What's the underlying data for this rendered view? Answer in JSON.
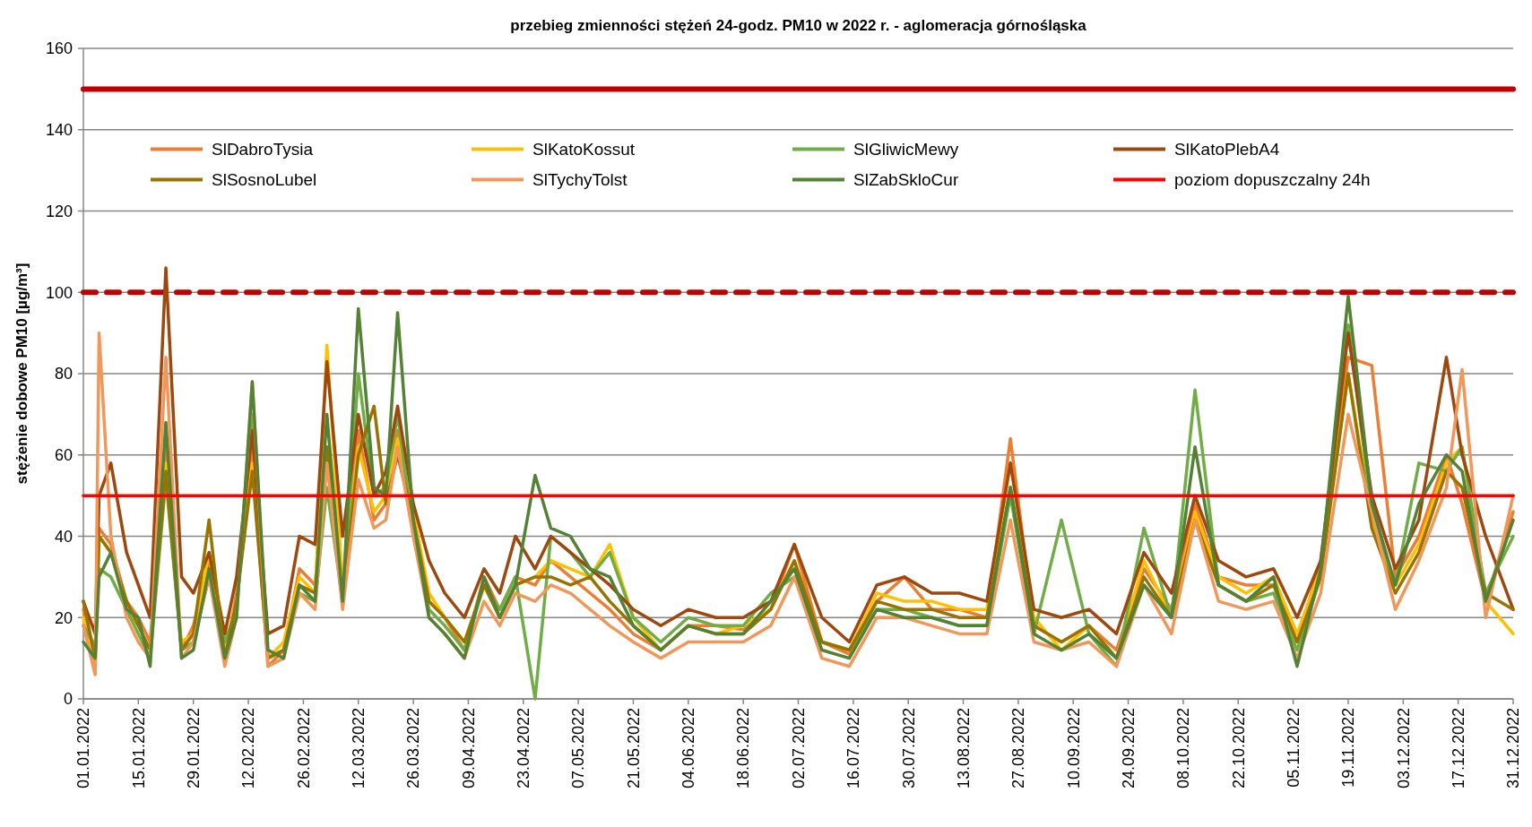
{
  "chart_data": {
    "type": "line",
    "title": "przebieg zmienności stężeń 24-godz. PM10 w 2022 r. - aglomeracja górnośląska",
    "ylabel": "stężenie dobowe PM10 [µg/m³]",
    "x": [
      "2022-01-01",
      "2022-01-04",
      "2022-01-05",
      "2022-01-08",
      "2022-01-12",
      "2022-01-15",
      "2022-01-18",
      "2022-01-22",
      "2022-01-26",
      "2022-01-29",
      "2022-02-02",
      "2022-02-06",
      "2022-02-09",
      "2022-02-13",
      "2022-02-17",
      "2022-02-21",
      "2022-02-25",
      "2022-03-01",
      "2022-03-04",
      "2022-03-08",
      "2022-03-12",
      "2022-03-16",
      "2022-03-19",
      "2022-03-22",
      "2022-03-26",
      "2022-03-30",
      "2022-04-03",
      "2022-04-08",
      "2022-04-13",
      "2022-04-17",
      "2022-04-21",
      "2022-04-26",
      "2022-04-30",
      "2022-05-05",
      "2022-05-10",
      "2022-05-15",
      "2022-05-21",
      "2022-05-28",
      "2022-06-04",
      "2022-06-11",
      "2022-06-18",
      "2022-06-25",
      "2022-07-01",
      "2022-07-08",
      "2022-07-15",
      "2022-07-22",
      "2022-07-29",
      "2022-08-05",
      "2022-08-12",
      "2022-08-19",
      "2022-08-25",
      "2022-08-31",
      "2022-09-07",
      "2022-09-14",
      "2022-09-21",
      "2022-09-28",
      "2022-10-05",
      "2022-10-11",
      "2022-10-17",
      "2022-10-24",
      "2022-10-31",
      "2022-11-06",
      "2022-11-12",
      "2022-11-19",
      "2022-11-25",
      "2022-12-01",
      "2022-12-07",
      "2022-12-14",
      "2022-12-18",
      "2022-12-24",
      "2022-12-31"
    ],
    "series": [
      {
        "name": "SlDabroTysia",
        "color": "#ed7d31",
        "values": [
          22,
          8,
          42,
          38,
          24,
          20,
          14,
          62,
          12,
          18,
          34,
          10,
          26,
          62,
          8,
          12,
          32,
          28,
          60,
          26,
          66,
          44,
          48,
          66,
          44,
          24,
          20,
          12,
          30,
          22,
          30,
          28,
          34,
          30,
          26,
          22,
          16,
          12,
          18,
          18,
          17,
          22,
          38,
          14,
          11,
          24,
          30,
          22,
          22,
          20,
          64,
          18,
          14,
          18,
          12,
          32,
          22,
          48,
          30,
          28,
          28,
          14,
          34,
          84,
          82,
          30,
          40,
          60,
          48,
          24,
          46
        ]
      },
      {
        "name": "SlKatoKossut",
        "color": "#ffc000",
        "values": [
          20,
          6,
          40,
          36,
          22,
          18,
          12,
          58,
          14,
          16,
          36,
          12,
          24,
          58,
          10,
          14,
          30,
          26,
          87,
          28,
          62,
          46,
          50,
          64,
          46,
          26,
          20,
          14,
          28,
          20,
          28,
          30,
          34,
          32,
          30,
          38,
          20,
          12,
          18,
          16,
          18,
          22,
          34,
          14,
          12,
          26,
          24,
          24,
          22,
          22,
          58,
          20,
          12,
          18,
          10,
          34,
          20,
          46,
          30,
          26,
          30,
          16,
          32,
          80,
          44,
          28,
          38,
          58,
          62,
          24,
          16
        ]
      },
      {
        "name": "SlGliwicMewy",
        "color": "#70ad47",
        "values": [
          18,
          13,
          32,
          30,
          22,
          16,
          10,
          54,
          12,
          14,
          30,
          14,
          22,
          70,
          10,
          12,
          26,
          24,
          52,
          24,
          80,
          50,
          52,
          70,
          40,
          22,
          18,
          12,
          28,
          22,
          30,
          0,
          40,
          36,
          30,
          36,
          20,
          14,
          20,
          18,
          18,
          26,
          30,
          14,
          12,
          22,
          22,
          20,
          18,
          18,
          50,
          16,
          44,
          16,
          8,
          42,
          20,
          76,
          28,
          24,
          26,
          12,
          30,
          92,
          46,
          28,
          58,
          56,
          62,
          26,
          40
        ]
      },
      {
        "name": "SlKatoPlebA4",
        "color": "#9e480e",
        "values": [
          24,
          16,
          50,
          58,
          36,
          28,
          20,
          106,
          30,
          26,
          36,
          16,
          30,
          66,
          16,
          18,
          40,
          38,
          83,
          40,
          70,
          50,
          56,
          72,
          48,
          34,
          26,
          20,
          32,
          26,
          40,
          32,
          40,
          36,
          32,
          28,
          22,
          18,
          22,
          20,
          20,
          24,
          38,
          20,
          14,
          28,
          30,
          26,
          26,
          24,
          58,
          22,
          20,
          22,
          16,
          36,
          26,
          50,
          34,
          30,
          32,
          20,
          34,
          90,
          50,
          32,
          44,
          84,
          60,
          40,
          22
        ]
      },
      {
        "name": "SlSosnoLubel",
        "color": "#997300",
        "values": [
          24,
          10,
          40,
          36,
          24,
          18,
          12,
          56,
          12,
          16,
          44,
          10,
          24,
          56,
          10,
          12,
          28,
          26,
          62,
          24,
          60,
          72,
          48,
          60,
          44,
          24,
          20,
          14,
          28,
          20,
          28,
          30,
          30,
          28,
          30,
          24,
          18,
          12,
          18,
          16,
          16,
          22,
          34,
          14,
          12,
          24,
          22,
          22,
          20,
          20,
          52,
          18,
          14,
          18,
          10,
          30,
          20,
          44,
          28,
          24,
          28,
          14,
          30,
          80,
          42,
          26,
          36,
          56,
          52,
          26,
          22
        ]
      },
      {
        "name": "SlTychyTolst",
        "color": "#f1975a",
        "values": [
          18,
          6,
          90,
          40,
          20,
          14,
          10,
          84,
          10,
          14,
          30,
          8,
          20,
          78,
          8,
          10,
          26,
          22,
          58,
          22,
          54,
          42,
          44,
          62,
          40,
          20,
          16,
          10,
          24,
          18,
          26,
          24,
          28,
          26,
          22,
          18,
          14,
          10,
          14,
          14,
          14,
          18,
          30,
          10,
          8,
          20,
          20,
          18,
          16,
          16,
          44,
          14,
          12,
          14,
          8,
          28,
          16,
          44,
          24,
          22,
          24,
          10,
          26,
          70,
          46,
          22,
          34,
          52,
          81,
          20,
          50
        ]
      },
      {
        "name": "SlZabSkloCur",
        "color": "#548235",
        "values": [
          14,
          10,
          30,
          36,
          22,
          20,
          8,
          68,
          10,
          12,
          32,
          10,
          20,
          78,
          12,
          10,
          28,
          24,
          70,
          24,
          96,
          52,
          50,
          95,
          44,
          20,
          16,
          10,
          30,
          20,
          28,
          55,
          42,
          40,
          32,
          30,
          18,
          12,
          18,
          16,
          16,
          24,
          32,
          12,
          10,
          22,
          20,
          20,
          18,
          18,
          52,
          16,
          12,
          16,
          10,
          28,
          20,
          62,
          28,
          24,
          30,
          8,
          32,
          99,
          48,
          28,
          48,
          60,
          56,
          24,
          44
        ]
      },
      {
        "name": "poziom dopuszczalny 24h",
        "color": "#ff0000",
        "x": [
          "2022-01-01",
          "2022-12-31"
        ],
        "values": [
          50,
          50
        ]
      }
    ],
    "xlim": [
      "2022-01-01",
      "2022-12-31"
    ],
    "xticks": [
      {
        "value": "2022-01-01",
        "label": "01.01.2022"
      },
      {
        "value": "2022-01-15",
        "label": "15.01.2022"
      },
      {
        "value": "2022-01-29",
        "label": "29.01.2022"
      },
      {
        "value": "2022-02-12",
        "label": "12.02.2022"
      },
      {
        "value": "2022-02-26",
        "label": "26.02.2022"
      },
      {
        "value": "2022-03-12",
        "label": "12.03.2022"
      },
      {
        "value": "2022-03-26",
        "label": "26.03.2022"
      },
      {
        "value": "2022-04-09",
        "label": "09.04.2022"
      },
      {
        "value": "2022-04-23",
        "label": "23.04.2022"
      },
      {
        "value": "2022-05-07",
        "label": "07.05.2022"
      },
      {
        "value": "2022-05-21",
        "label": "21.05.2022"
      },
      {
        "value": "2022-06-04",
        "label": "04.06.2022"
      },
      {
        "value": "2022-06-18",
        "label": "18.06.2022"
      },
      {
        "value": "2022-07-02",
        "label": "02.07.2022"
      },
      {
        "value": "2022-07-16",
        "label": "16.07.2022"
      },
      {
        "value": "2022-07-30",
        "label": "30.07.2022"
      },
      {
        "value": "2022-08-13",
        "label": "13.08.2022"
      },
      {
        "value": "2022-08-27",
        "label": "27.08.2022"
      },
      {
        "value": "2022-09-10",
        "label": "10.09.2022"
      },
      {
        "value": "2022-09-24",
        "label": "24.09.2022"
      },
      {
        "value": "2022-10-08",
        "label": "08.10.2022"
      },
      {
        "value": "2022-10-22",
        "label": "22.10.2022"
      },
      {
        "value": "2022-11-05",
        "label": "05.11.2022"
      },
      {
        "value": "2022-11-19",
        "label": "19.11.2022"
      },
      {
        "value": "2022-12-03",
        "label": "03.12.2022"
      },
      {
        "value": "2022-12-17",
        "label": "17.12.2022"
      },
      {
        "value": "2022-12-31",
        "label": "31.12.2022"
      }
    ],
    "ylim": [
      0,
      160
    ],
    "yticks": [
      0,
      20,
      40,
      60,
      80,
      100,
      120,
      140,
      160
    ],
    "grid": "y",
    "legend": "top",
    "marker": "none",
    "line_style": "solid",
    "ref_lines": [
      {
        "axis": "y",
        "value": 150,
        "color": "#c00000",
        "line_style": "solid"
      },
      {
        "axis": "y",
        "value": 100,
        "color": "#c00000",
        "line_style": "dashed"
      }
    ]
  }
}
